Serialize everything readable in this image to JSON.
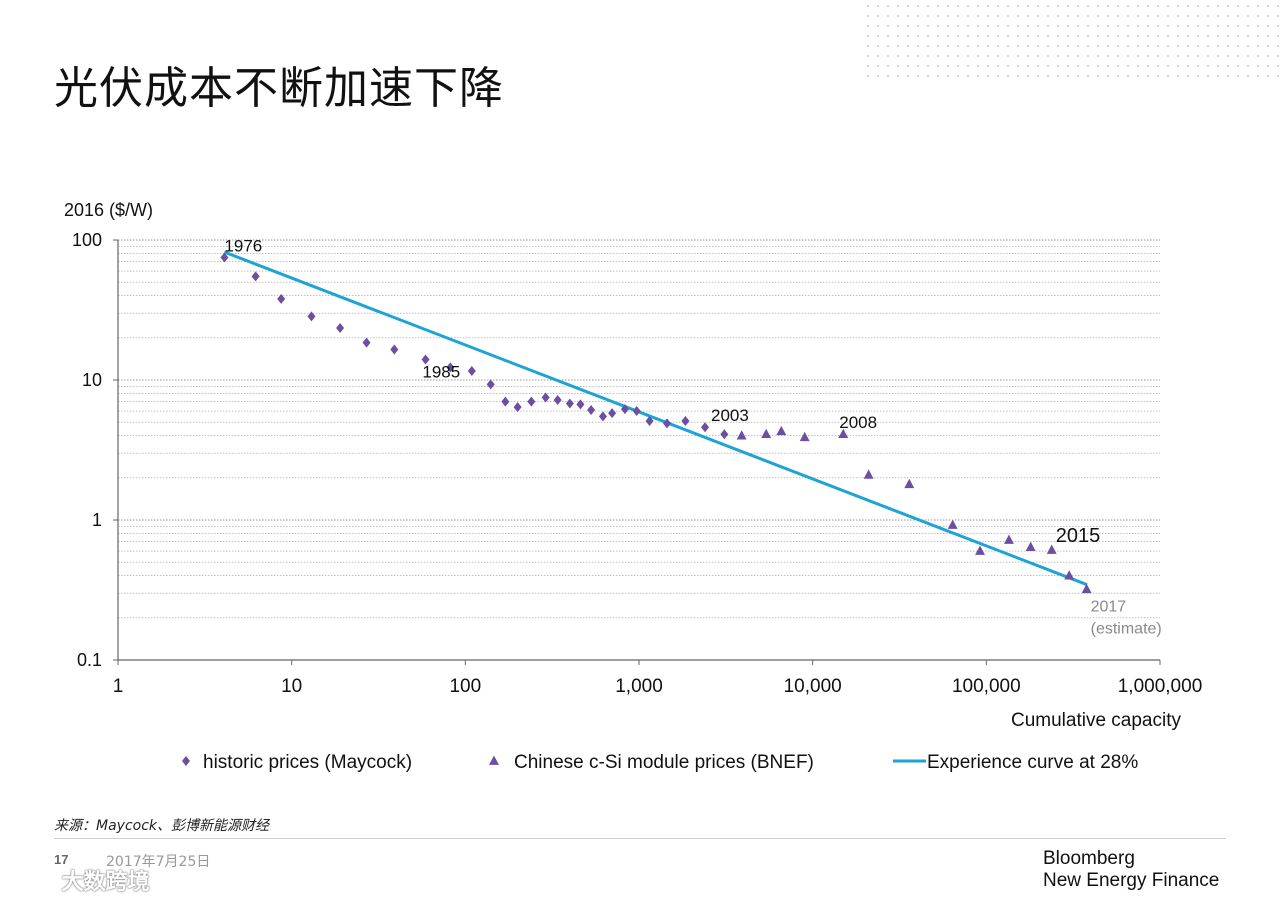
{
  "page": {
    "title": "光伏成本不断加速下降",
    "source": "来源：Maycock、彭博新能源财经",
    "page_number": "17",
    "date": "2017年7月25日",
    "brand_line1": "Bloomberg",
    "brand_line2": "New Energy Finance",
    "watermark": "大数跨境"
  },
  "colors": {
    "diamond": "#6b4fa0",
    "triangle": "#6b4fa0",
    "curve": "#1fa3d4",
    "axis": "#666666",
    "grid": "#9a9a9a",
    "annotation_gray": "#8a8a8a"
  },
  "chart_data": {
    "type": "scatter",
    "title": "",
    "ylabel": "2016 ($/W)",
    "xlabel": "Cumulative capacity",
    "xscale": "log",
    "yscale": "log",
    "xlim": [
      1,
      1000000
    ],
    "ylim": [
      0.1,
      100
    ],
    "x_ticks": [
      1,
      10,
      100,
      1000,
      10000,
      100000,
      1000000
    ],
    "x_tick_labels": [
      "1",
      "10",
      "100",
      "1,000",
      "10,000",
      "100,000",
      "1,000,000"
    ],
    "y_ticks": [
      0.1,
      1,
      10,
      100
    ],
    "y_tick_labels": [
      "0.1",
      "1",
      "10",
      "100"
    ],
    "grid": "horizontal minor",
    "legend_position": "bottom",
    "series": [
      {
        "name": "historic prices (Maycock)",
        "marker": "diamond",
        "points": [
          [
            4.1,
            75
          ],
          [
            6.2,
            55
          ],
          [
            8.7,
            38
          ],
          [
            13,
            28.5
          ],
          [
            19,
            23.5
          ],
          [
            27,
            18.5
          ],
          [
            39,
            16.5
          ],
          [
            59,
            14
          ],
          [
            82,
            12.3
          ],
          [
            109,
            11.6
          ],
          [
            140,
            9.3
          ],
          [
            170,
            7.0
          ],
          [
            200,
            6.4
          ],
          [
            240,
            7.0
          ],
          [
            290,
            7.5
          ],
          [
            340,
            7.2
          ],
          [
            400,
            6.8
          ],
          [
            460,
            6.7
          ],
          [
            530,
            6.1
          ],
          [
            620,
            5.5
          ],
          [
            700,
            5.8
          ],
          [
            830,
            6.2
          ],
          [
            970,
            6.0
          ],
          [
            1150,
            5.1
          ],
          [
            1450,
            4.9
          ],
          [
            1850,
            5.1
          ],
          [
            2400,
            4.6
          ],
          [
            3100,
            4.1
          ]
        ]
      },
      {
        "name": "Chinese c-Si module prices (BNEF)",
        "marker": "triangle",
        "points": [
          [
            3900,
            4.0
          ],
          [
            5400,
            4.1
          ],
          [
            6600,
            4.3
          ],
          [
            9000,
            3.9
          ],
          [
            15000,
            4.1
          ],
          [
            21000,
            2.1
          ],
          [
            36000,
            1.8
          ],
          [
            64000,
            0.92
          ],
          [
            92000,
            0.6
          ],
          [
            135000,
            0.72
          ],
          [
            180000,
            0.64
          ],
          [
            238000,
            0.61
          ],
          [
            300000,
            0.4
          ],
          [
            378000,
            0.32
          ]
        ]
      },
      {
        "name": "Experience curve at 28%",
        "marker": "line",
        "points": [
          [
            4.1,
            82
          ],
          [
            380000,
            0.345
          ]
        ]
      }
    ],
    "annotations": [
      {
        "text": "1976",
        "x": 4.1,
        "y": 75
      },
      {
        "text": "1985",
        "x": 82,
        "y": 12.3
      },
      {
        "text": "2003",
        "x": 2400,
        "y": 4.6
      },
      {
        "text": "2008",
        "x": 15000,
        "y": 4.1
      },
      {
        "text": "2015",
        "x": 238000,
        "y": 0.61
      },
      {
        "text": "2017",
        "x": 378000,
        "y": 0.32
      },
      {
        "text": "(estimate)",
        "x": 378000,
        "y": 0.32
      }
    ]
  }
}
